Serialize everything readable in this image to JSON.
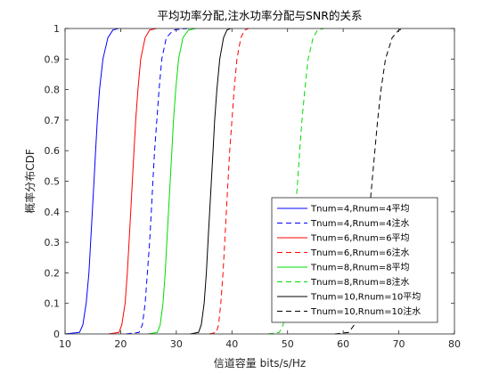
{
  "chart_data": {
    "type": "line",
    "title": "平均功率分配,注水功率分配与SNR的关系",
    "xlabel": "信道容量 bits/s/Hz",
    "ylabel": "概率分布CDF",
    "xlim": [
      10,
      80
    ],
    "ylim": [
      0,
      1
    ],
    "xticks": [
      "10",
      "20",
      "30",
      "40",
      "50",
      "60",
      "70",
      "80"
    ],
    "yticks": [
      "0",
      "0.1",
      "0.2",
      "0.3",
      "0.4",
      "0.5",
      "0.6",
      "0.7",
      "0.8",
      "0.9",
      "1"
    ],
    "grid": false,
    "legend_position": "bottom-right",
    "y_levels": [
      0,
      0.005,
      0.03,
      0.1,
      0.2,
      0.3,
      0.4,
      0.5,
      0.6,
      0.7,
      0.8,
      0.9,
      0.97,
      0.995,
      1
    ],
    "series": [
      {
        "name": "Tnum=4,Rnum=4平均",
        "color": "#0000ff",
        "dash": false,
        "x": [
          10.0,
          12.6,
          13.2,
          13.8,
          14.3,
          14.6,
          14.9,
          15.2,
          15.5,
          15.8,
          16.2,
          16.8,
          17.7,
          18.6,
          19.6
        ]
      },
      {
        "name": "Tnum=4,Rnum=4注水",
        "color": "#0000ff",
        "dash": true,
        "x": [
          21.0,
          23.3,
          23.9,
          24.4,
          24.8,
          25.2,
          25.5,
          25.8,
          26.1,
          26.5,
          26.9,
          27.4,
          28.2,
          29.5,
          32.0
        ]
      },
      {
        "name": "Tnum=6,Rnum=6平均",
        "color": "#ff0000",
        "dash": false,
        "x": [
          17.8,
          19.7,
          20.2,
          20.8,
          21.2,
          21.5,
          21.8,
          22.1,
          22.4,
          22.7,
          23.1,
          23.6,
          24.4,
          25.2,
          26.4
        ]
      },
      {
        "name": "Tnum=6,Rnum=6注水",
        "color": "#ff0000",
        "dash": true,
        "x": [
          36.0,
          37.2,
          37.6,
          38.0,
          38.4,
          38.7,
          39.0,
          39.3,
          39.6,
          40.0,
          40.4,
          40.9,
          41.6,
          42.3,
          43.0
        ]
      },
      {
        "name": "Tnum=8,Rnum=8平均",
        "color": "#00dd00",
        "dash": false,
        "x": [
          25.0,
          26.6,
          27.1,
          27.6,
          28.0,
          28.3,
          28.6,
          28.9,
          29.2,
          29.5,
          29.9,
          30.4,
          31.2,
          32.2,
          33.5
        ]
      },
      {
        "name": "Tnum=8,Rnum=8注水",
        "color": "#00dd00",
        "dash": true,
        "x": [
          46.5,
          48.5,
          49.2,
          49.9,
          50.5,
          51.0,
          51.4,
          51.8,
          52.2,
          52.6,
          53.1,
          53.7,
          54.6,
          55.4,
          56.5
        ]
      },
      {
        "name": "Tnum=10,Rnum=10平均",
        "color": "#000000",
        "dash": false,
        "x": [
          32.5,
          34.0,
          34.5,
          35.0,
          35.4,
          35.7,
          36.0,
          36.3,
          36.6,
          36.9,
          37.3,
          37.8,
          38.5,
          39.1,
          39.8
        ]
      },
      {
        "name": "Tnum=10,Rnum=10注水",
        "color": "#000000",
        "dash": true,
        "x": [
          58.5,
          61.0,
          62.0,
          62.9,
          63.6,
          64.2,
          64.7,
          65.2,
          65.7,
          66.2,
          66.8,
          67.6,
          68.8,
          70.0,
          71.0
        ]
      }
    ]
  }
}
